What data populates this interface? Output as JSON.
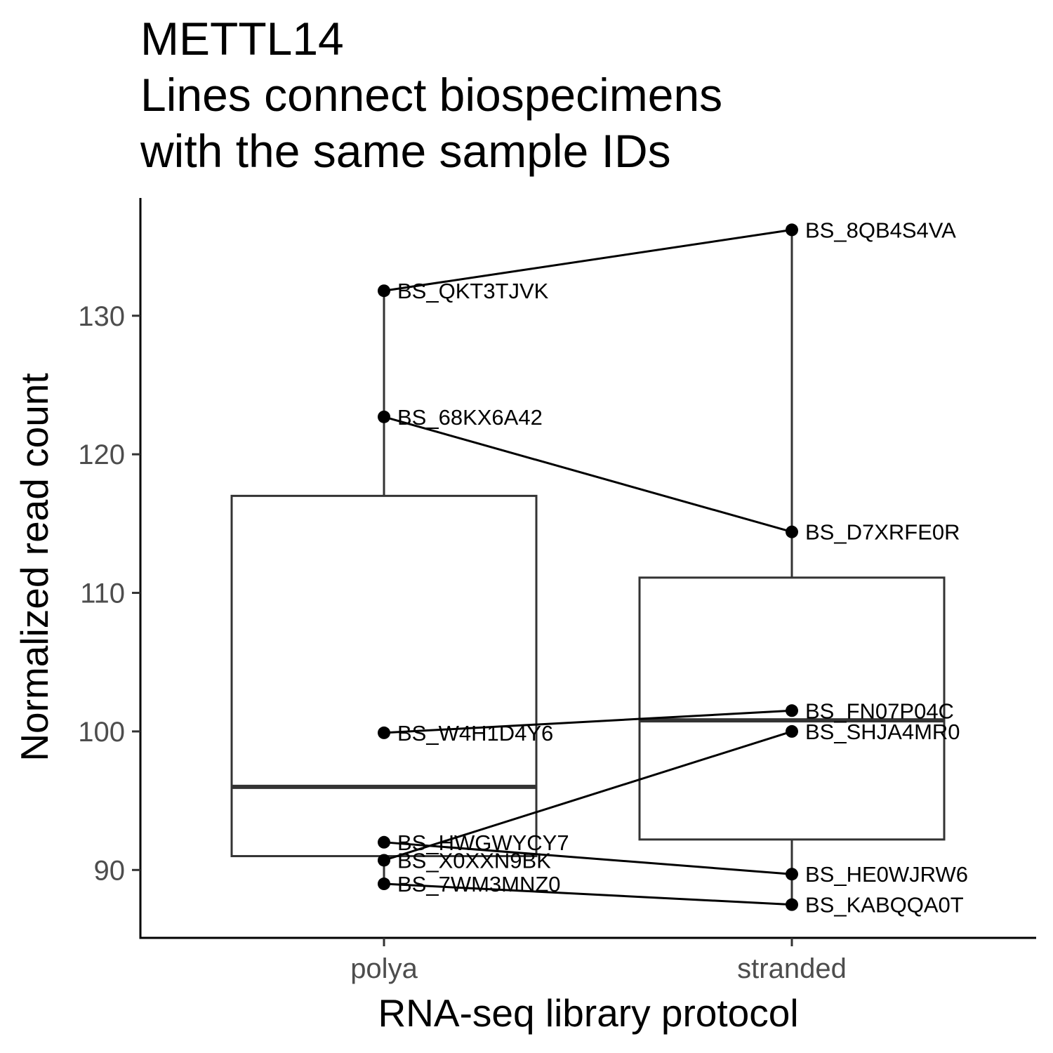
{
  "chart_data": {
    "type": "box",
    "title_lines": [
      "METTL14",
      "Lines connect biospecimens",
      "with the same sample IDs"
    ],
    "xlabel": "RNA-seq library protocol",
    "ylabel": "Normalized read count",
    "categories": [
      "polya",
      "stranded"
    ],
    "ylim": [
      85.1,
      138.5
    ],
    "yticks": [
      90,
      100,
      110,
      120,
      130
    ],
    "grid": false,
    "legend": "none",
    "boxes": [
      {
        "category": "polya",
        "q1": 91.0,
        "median": 96.0,
        "q3": 117.0,
        "whisker_low": 89.0,
        "whisker_high": 131.8
      },
      {
        "category": "stranded",
        "q1": 92.2,
        "median": 100.8,
        "q3": 111.1,
        "whisker_low": 87.5,
        "whisker_high": 136.2
      }
    ],
    "points": [
      {
        "category": "polya",
        "label": "BS_QKT3TJVK",
        "y": 131.8
      },
      {
        "category": "polya",
        "label": "BS_68KX6A42",
        "y": 122.7
      },
      {
        "category": "polya",
        "label": "BS_W4H1D4Y6",
        "y": 99.9
      },
      {
        "category": "polya",
        "label": "BS_HWGWYCY7",
        "y": 92.0
      },
      {
        "category": "polya",
        "label": "BS_X0XXN9BK",
        "y": 90.7
      },
      {
        "category": "polya",
        "label": "BS_7WM3MNZ0",
        "y": 89.0
      },
      {
        "category": "stranded",
        "label": "BS_8QB4S4VA",
        "y": 136.2
      },
      {
        "category": "stranded",
        "label": "BS_D7XRFE0R",
        "y": 114.4
      },
      {
        "category": "stranded",
        "label": "BS_FN07P04C",
        "y": 101.5
      },
      {
        "category": "stranded",
        "label": "BS_SHJA4MR0",
        "y": 100.0
      },
      {
        "category": "stranded",
        "label": "BS_HE0WJRW6",
        "y": 89.7
      },
      {
        "category": "stranded",
        "label": "BS_KABQQA0T",
        "y": 87.5
      }
    ],
    "pairs": [
      [
        "BS_QKT3TJVK",
        "BS_8QB4S4VA"
      ],
      [
        "BS_68KX6A42",
        "BS_D7XRFE0R"
      ],
      [
        "BS_W4H1D4Y6",
        "BS_FN07P04C"
      ],
      [
        "BS_X0XXN9BK",
        "BS_SHJA4MR0"
      ],
      [
        "BS_HWGWYCY7",
        "BS_HE0WJRW6"
      ],
      [
        "BS_7WM3MNZ0",
        "BS_KABQQA0T"
      ]
    ],
    "colors": {
      "box": "#333333",
      "points": "#000000",
      "lines": "#000000",
      "axis": "#000000",
      "tick_labels": "#4d4d4d"
    }
  }
}
